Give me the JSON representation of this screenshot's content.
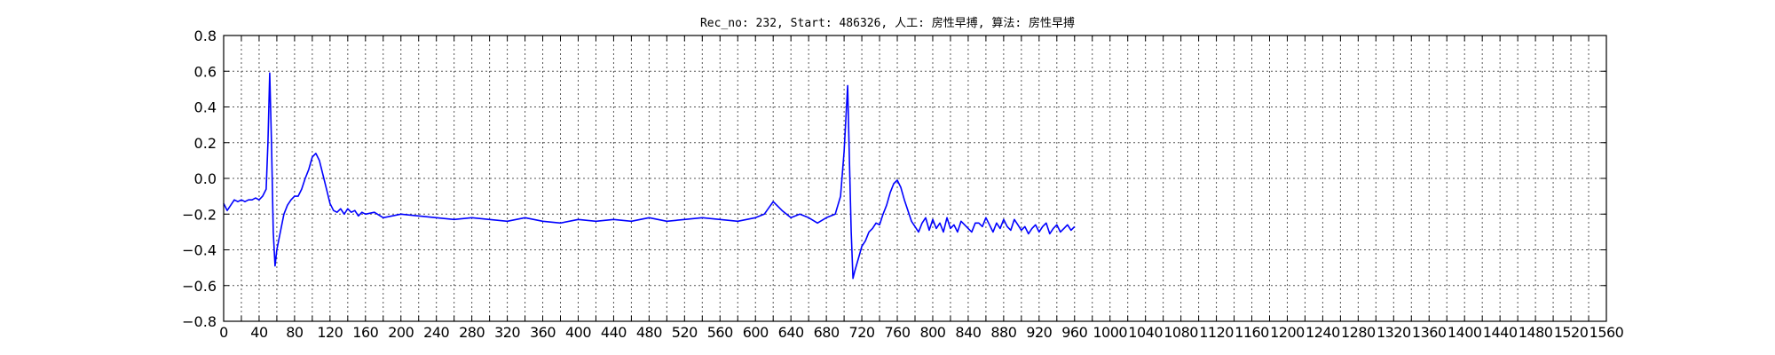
{
  "chart_data": {
    "type": "line",
    "title": "Rec_no: 232, Start: 486326, 人工: 房性早搏, 算法: 房性早搏",
    "xlabel": "",
    "ylabel": "",
    "xlim": [
      0,
      1560
    ],
    "ylim": [
      -0.8,
      0.8
    ],
    "grid": true,
    "yticks": [
      -0.8,
      -0.6,
      -0.4,
      -0.2,
      0.0,
      0.2,
      0.4,
      0.6,
      0.8
    ],
    "ytick_labels": [
      "−0.8",
      "−0.6",
      "−0.4",
      "−0.2",
      "0.0",
      "0.2",
      "0.4",
      "0.6",
      "0.8"
    ],
    "xticks": [
      0,
      20,
      40,
      60,
      80,
      100,
      120,
      140,
      160,
      180,
      200,
      220,
      240,
      260,
      280,
      300,
      320,
      340,
      360,
      380,
      400,
      420,
      440,
      460,
      480,
      500,
      520,
      540,
      560,
      580,
      600,
      620,
      640,
      660,
      680,
      700,
      720,
      740,
      760,
      780,
      800,
      820,
      840,
      860,
      880,
      900,
      920,
      940,
      960,
      980,
      1000,
      1020,
      1040,
      1060,
      1080,
      1100,
      1120,
      1140,
      1160,
      1180,
      1200,
      1220,
      1240,
      1260,
      1280,
      1300,
      1320,
      1340,
      1360,
      1380,
      1400,
      1420,
      1440,
      1460,
      1480,
      1500,
      1520,
      1540,
      1560
    ],
    "xtick_labels": [
      "0",
      "",
      "40",
      "",
      "80",
      "",
      "120",
      "",
      "160",
      "",
      "200",
      "",
      "240",
      "",
      "280",
      "",
      "320",
      "",
      "360",
      "",
      "400",
      "",
      "440",
      "",
      "480",
      "",
      "520",
      "",
      "560",
      "",
      "600",
      "",
      "640",
      "",
      "680",
      "",
      "720",
      "",
      "760",
      "",
      "800",
      "",
      "840",
      "",
      "880",
      "",
      "920",
      "",
      "960",
      "",
      "1000",
      "",
      "1040",
      "",
      "1080",
      "",
      "1120",
      "",
      "1160",
      "",
      "1200",
      "",
      "1240",
      "",
      "1280",
      "",
      "1320",
      "",
      "1360",
      "",
      "1400",
      "",
      "1440",
      "",
      "1480",
      "",
      "1520",
      "",
      "1560"
    ],
    "series": [
      {
        "color": "#0000ff",
        "x": [
          0,
          4,
          8,
          12,
          16,
          20,
          24,
          28,
          32,
          36,
          40,
          44,
          48,
          50,
          52,
          54,
          56,
          58,
          60,
          62,
          64,
          66,
          68,
          72,
          76,
          80,
          84,
          88,
          92,
          96,
          100,
          104,
          108,
          112,
          116,
          120,
          124,
          128,
          132,
          136,
          140,
          144,
          148,
          152,
          156,
          160,
          170,
          180,
          200,
          220,
          240,
          260,
          280,
          300,
          320,
          340,
          360,
          380,
          400,
          420,
          440,
          460,
          480,
          500,
          520,
          540,
          560,
          580,
          600,
          610,
          620,
          630,
          640,
          650,
          660,
          670,
          680,
          690,
          696,
          700,
          704,
          706,
          708,
          710,
          712,
          716,
          720,
          724,
          728,
          732,
          736,
          740,
          744,
          748,
          752,
          756,
          760,
          764,
          768,
          772,
          776,
          780,
          784,
          788,
          792,
          796,
          800,
          804,
          808,
          812,
          816,
          820,
          824,
          828,
          832,
          836,
          840,
          844,
          848,
          852,
          856,
          860,
          864,
          868,
          872,
          876,
          880,
          884,
          888,
          892,
          896,
          900,
          904,
          908,
          912,
          916,
          920,
          924,
          928,
          932,
          936,
          940,
          944,
          948,
          952,
          956,
          960
        ],
        "y": [
          -0.14,
          -0.18,
          -0.15,
          -0.12,
          -0.13,
          -0.12,
          -0.13,
          -0.12,
          -0.12,
          -0.11,
          -0.12,
          -0.1,
          -0.06,
          0.2,
          0.59,
          0.2,
          -0.3,
          -0.49,
          -0.4,
          -0.35,
          -0.3,
          -0.25,
          -0.2,
          -0.15,
          -0.12,
          -0.1,
          -0.1,
          -0.06,
          0.0,
          0.05,
          0.12,
          0.14,
          0.1,
          0.02,
          -0.06,
          -0.14,
          -0.18,
          -0.19,
          -0.17,
          -0.2,
          -0.17,
          -0.19,
          -0.18,
          -0.21,
          -0.19,
          -0.2,
          -0.19,
          -0.22,
          -0.2,
          -0.21,
          -0.22,
          -0.23,
          -0.22,
          -0.23,
          -0.24,
          -0.22,
          -0.24,
          -0.25,
          -0.23,
          -0.24,
          -0.23,
          -0.24,
          -0.22,
          -0.24,
          -0.23,
          -0.22,
          -0.23,
          -0.24,
          -0.22,
          -0.2,
          -0.13,
          -0.18,
          -0.22,
          -0.2,
          -0.22,
          -0.25,
          -0.22,
          -0.2,
          -0.1,
          0.15,
          0.52,
          0.1,
          -0.3,
          -0.56,
          -0.52,
          -0.45,
          -0.38,
          -0.35,
          -0.3,
          -0.28,
          -0.25,
          -0.26,
          -0.2,
          -0.15,
          -0.08,
          -0.03,
          -0.01,
          -0.05,
          -0.12,
          -0.18,
          -0.24,
          -0.27,
          -0.3,
          -0.25,
          -0.22,
          -0.29,
          -0.23,
          -0.28,
          -0.25,
          -0.3,
          -0.22,
          -0.28,
          -0.26,
          -0.3,
          -0.24,
          -0.26,
          -0.28,
          -0.3,
          -0.25,
          -0.25,
          -0.27,
          -0.22,
          -0.26,
          -0.3,
          -0.25,
          -0.28,
          -0.23,
          -0.27,
          -0.29,
          -0.23,
          -0.26,
          -0.29,
          -0.27,
          -0.31,
          -0.28,
          -0.26,
          -0.3,
          -0.27,
          -0.25,
          -0.31,
          -0.28,
          -0.26,
          -0.3,
          -0.28,
          -0.26,
          -0.29,
          -0.27
        ]
      }
    ]
  }
}
